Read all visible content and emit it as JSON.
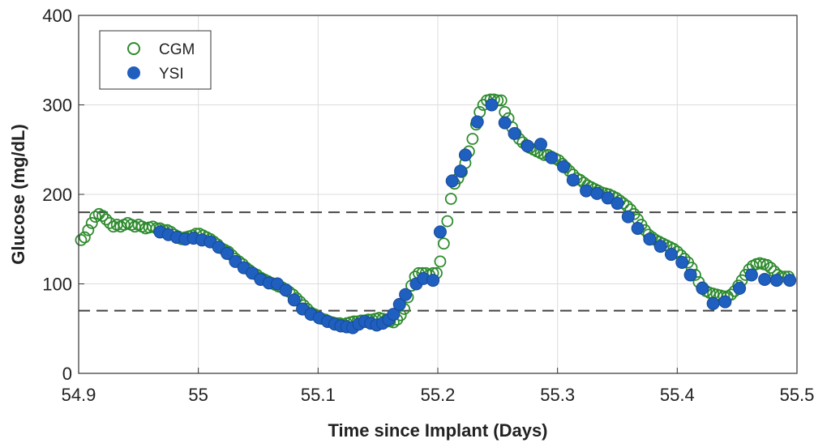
{
  "chart_data": {
    "type": "scatter",
    "title": "",
    "xlabel": "Time since Implant (Days)",
    "ylabel": "Glucose (mg/dL)",
    "xlim": [
      54.9,
      55.5
    ],
    "ylim": [
      0,
      400
    ],
    "xticks": [
      "54.9",
      "55",
      "55.1",
      "55.2",
      "55.3",
      "55.4",
      "55.5"
    ],
    "yticks": [
      "0",
      "100",
      "200",
      "300",
      "400"
    ],
    "grid": true,
    "legend_position": "top-left",
    "reference_lines": [
      180,
      70
    ],
    "colors": {
      "cgm": "#2e8b2e",
      "ysi": "#1f5fbf",
      "reference": "#444444"
    },
    "series": [
      {
        "name": "CGM",
        "marker": "open-circle",
        "points": [
          [
            54.902,
            149
          ],
          [
            54.905,
            152
          ],
          [
            54.908,
            160
          ],
          [
            54.911,
            168
          ],
          [
            54.914,
            175
          ],
          [
            54.917,
            178
          ],
          [
            54.92,
            176
          ],
          [
            54.923,
            172
          ],
          [
            54.926,
            168
          ],
          [
            54.929,
            164
          ],
          [
            54.932,
            166
          ],
          [
            54.935,
            164
          ],
          [
            54.938,
            166
          ],
          [
            54.941,
            168
          ],
          [
            54.944,
            166
          ],
          [
            54.947,
            164
          ],
          [
            54.95,
            166
          ],
          [
            54.953,
            164
          ],
          [
            54.956,
            162
          ],
          [
            54.959,
            163
          ],
          [
            54.962,
            164
          ],
          [
            54.965,
            162
          ],
          [
            54.968,
            162
          ],
          [
            54.971,
            160
          ],
          [
            54.974,
            160
          ],
          [
            54.977,
            158
          ],
          [
            54.98,
            155
          ],
          [
            54.983,
            153
          ],
          [
            54.986,
            150
          ],
          [
            54.989,
            152
          ],
          [
            54.992,
            153
          ],
          [
            54.995,
            154
          ],
          [
            54.998,
            156
          ],
          [
            55.001,
            156
          ],
          [
            55.004,
            154
          ],
          [
            55.007,
            152
          ],
          [
            55.01,
            150
          ],
          [
            55.013,
            147
          ],
          [
            55.016,
            144
          ],
          [
            55.019,
            140
          ],
          [
            55.022,
            138
          ],
          [
            55.025,
            136
          ],
          [
            55.028,
            132
          ],
          [
            55.031,
            128
          ],
          [
            55.034,
            125
          ],
          [
            55.037,
            122
          ],
          [
            55.04,
            118
          ],
          [
            55.043,
            115
          ],
          [
            55.046,
            112
          ],
          [
            55.049,
            110
          ],
          [
            55.052,
            107
          ],
          [
            55.055,
            105
          ],
          [
            55.058,
            103
          ],
          [
            55.061,
            101
          ],
          [
            55.064,
            99
          ],
          [
            55.067,
            97
          ],
          [
            55.07,
            96
          ],
          [
            55.073,
            94
          ],
          [
            55.076,
            91
          ],
          [
            55.079,
            88
          ],
          [
            55.082,
            84
          ],
          [
            55.085,
            80
          ],
          [
            55.088,
            76
          ],
          [
            55.091,
            72
          ],
          [
            55.094,
            68
          ],
          [
            55.097,
            66
          ],
          [
            55.1,
            63
          ],
          [
            55.103,
            61
          ],
          [
            55.106,
            60
          ],
          [
            55.109,
            58
          ],
          [
            55.112,
            57
          ],
          [
            55.115,
            56
          ],
          [
            55.118,
            56
          ],
          [
            55.121,
            55
          ],
          [
            55.124,
            56
          ],
          [
            55.127,
            57
          ],
          [
            55.13,
            58
          ],
          [
            55.133,
            58
          ],
          [
            55.136,
            59
          ],
          [
            55.139,
            59
          ],
          [
            55.142,
            60
          ],
          [
            55.145,
            60
          ],
          [
            55.148,
            61
          ],
          [
            55.151,
            62
          ],
          [
            55.154,
            61
          ],
          [
            55.157,
            60
          ],
          [
            55.16,
            58
          ],
          [
            55.163,
            57
          ],
          [
            55.166,
            60
          ],
          [
            55.169,
            65
          ],
          [
            55.172,
            72
          ],
          [
            55.175,
            85
          ],
          [
            55.178,
            98
          ],
          [
            55.181,
            108
          ],
          [
            55.184,
            112
          ],
          [
            55.187,
            112
          ],
          [
            55.19,
            112
          ],
          [
            55.193,
            110
          ],
          [
            55.196,
            112
          ],
          [
            55.199,
            112
          ],
          [
            55.202,
            125
          ],
          [
            55.205,
            145
          ],
          [
            55.208,
            170
          ],
          [
            55.211,
            195
          ],
          [
            55.214,
            212
          ],
          [
            55.217,
            218
          ],
          [
            55.22,
            225
          ],
          [
            55.223,
            235
          ],
          [
            55.226,
            248
          ],
          [
            55.229,
            262
          ],
          [
            55.232,
            278
          ],
          [
            55.235,
            292
          ],
          [
            55.238,
            300
          ],
          [
            55.241,
            305
          ],
          [
            55.244,
            306
          ],
          [
            55.247,
            306
          ],
          [
            55.25,
            305
          ],
          [
            55.253,
            305
          ],
          [
            55.256,
            292
          ],
          [
            55.259,
            285
          ],
          [
            55.262,
            275
          ],
          [
            55.265,
            268
          ],
          [
            55.268,
            262
          ],
          [
            55.271,
            258
          ],
          [
            55.274,
            255
          ],
          [
            55.277,
            252
          ],
          [
            55.28,
            250
          ],
          [
            55.283,
            248
          ],
          [
            55.286,
            246
          ],
          [
            55.289,
            244
          ],
          [
            55.292,
            244
          ],
          [
            55.295,
            242
          ],
          [
            55.298,
            240
          ],
          [
            55.301,
            238
          ],
          [
            55.304,
            234
          ],
          [
            55.307,
            230
          ],
          [
            55.31,
            226
          ],
          [
            55.313,
            222
          ],
          [
            55.316,
            218
          ],
          [
            55.319,
            216
          ],
          [
            55.322,
            213
          ],
          [
            55.325,
            210
          ],
          [
            55.328,
            208
          ],
          [
            55.331,
            206
          ],
          [
            55.334,
            204
          ],
          [
            55.337,
            202
          ],
          [
            55.34,
            201
          ],
          [
            55.343,
            200
          ],
          [
            55.346,
            198
          ],
          [
            55.349,
            196
          ],
          [
            55.352,
            193
          ],
          [
            55.355,
            190
          ],
          [
            55.358,
            187
          ],
          [
            55.361,
            183
          ],
          [
            55.364,
            178
          ],
          [
            55.367,
            172
          ],
          [
            55.37,
            166
          ],
          [
            55.373,
            160
          ],
          [
            55.376,
            155
          ],
          [
            55.379,
            152
          ],
          [
            55.382,
            149
          ],
          [
            55.385,
            147
          ],
          [
            55.388,
            145
          ],
          [
            55.391,
            143
          ],
          [
            55.394,
            141
          ],
          [
            55.397,
            139
          ],
          [
            55.4,
            136
          ],
          [
            55.403,
            132
          ],
          [
            55.406,
            128
          ],
          [
            55.409,
            124
          ],
          [
            55.412,
            118
          ],
          [
            55.415,
            110
          ],
          [
            55.418,
            102
          ],
          [
            55.421,
            96
          ],
          [
            55.424,
            92
          ],
          [
            55.427,
            90
          ],
          [
            55.43,
            89
          ],
          [
            55.433,
            88
          ],
          [
            55.436,
            87
          ],
          [
            55.439,
            86
          ],
          [
            55.442,
            86
          ],
          [
            55.445,
            88
          ],
          [
            55.448,
            92
          ],
          [
            55.451,
            98
          ],
          [
            55.454,
            104
          ],
          [
            55.457,
            110
          ],
          [
            55.46,
            116
          ],
          [
            55.463,
            120
          ],
          [
            55.466,
            122
          ],
          [
            55.469,
            123
          ],
          [
            55.472,
            122
          ],
          [
            55.475,
            121
          ],
          [
            55.478,
            118
          ],
          [
            55.481,
            114
          ],
          [
            55.484,
            110
          ],
          [
            55.487,
            108
          ],
          [
            55.49,
            108
          ],
          [
            55.493,
            108
          ]
        ]
      },
      {
        "name": "YSI",
        "marker": "filled-circle",
        "points": [
          [
            54.968,
            158
          ],
          [
            54.975,
            155
          ],
          [
            54.982,
            152
          ],
          [
            54.989,
            150
          ],
          [
            54.996,
            151
          ],
          [
            55.003,
            149
          ],
          [
            55.01,
            147
          ],
          [
            55.017,
            141
          ],
          [
            55.024,
            134
          ],
          [
            55.031,
            125
          ],
          [
            55.038,
            118
          ],
          [
            55.045,
            112
          ],
          [
            55.052,
            105
          ],
          [
            55.059,
            101
          ],
          [
            55.066,
            100
          ],
          [
            55.073,
            93
          ],
          [
            55.08,
            82
          ],
          [
            55.087,
            72
          ],
          [
            55.094,
            66
          ],
          [
            55.101,
            62
          ],
          [
            55.108,
            58
          ],
          [
            55.114,
            55
          ],
          [
            55.119,
            53
          ],
          [
            55.124,
            52
          ],
          [
            55.129,
            51
          ],
          [
            55.134,
            55
          ],
          [
            55.139,
            58
          ],
          [
            55.144,
            56
          ],
          [
            55.149,
            54
          ],
          [
            55.154,
            56
          ],
          [
            55.159,
            60
          ],
          [
            55.163,
            66
          ],
          [
            55.168,
            77
          ],
          [
            55.173,
            88
          ],
          [
            55.182,
            100
          ],
          [
            55.188,
            106
          ],
          [
            55.196,
            104
          ],
          [
            55.202,
            158
          ],
          [
            55.212,
            215
          ],
          [
            55.219,
            226
          ],
          [
            55.223,
            244
          ],
          [
            55.233,
            281
          ],
          [
            55.245,
            300
          ],
          [
            55.256,
            280
          ],
          [
            55.264,
            268
          ],
          [
            55.275,
            254
          ],
          [
            55.286,
            256
          ],
          [
            55.295,
            241
          ],
          [
            55.305,
            231
          ],
          [
            55.313,
            216
          ],
          [
            55.324,
            204
          ],
          [
            55.333,
            201
          ],
          [
            55.342,
            196
          ],
          [
            55.35,
            190
          ],
          [
            55.359,
            175
          ],
          [
            55.367,
            162
          ],
          [
            55.377,
            150
          ],
          [
            55.386,
            142
          ],
          [
            55.395,
            133
          ],
          [
            55.404,
            124
          ],
          [
            55.411,
            110
          ],
          [
            55.421,
            95
          ],
          [
            55.43,
            78
          ],
          [
            55.44,
            80
          ],
          [
            55.452,
            95
          ],
          [
            55.462,
            110
          ],
          [
            55.473,
            105
          ],
          [
            55.483,
            104
          ],
          [
            55.494,
            104
          ]
        ]
      }
    ],
    "legend": [
      {
        "label": "CGM",
        "marker": "open-circle"
      },
      {
        "label": "YSI",
        "marker": "filled-circle"
      }
    ]
  }
}
